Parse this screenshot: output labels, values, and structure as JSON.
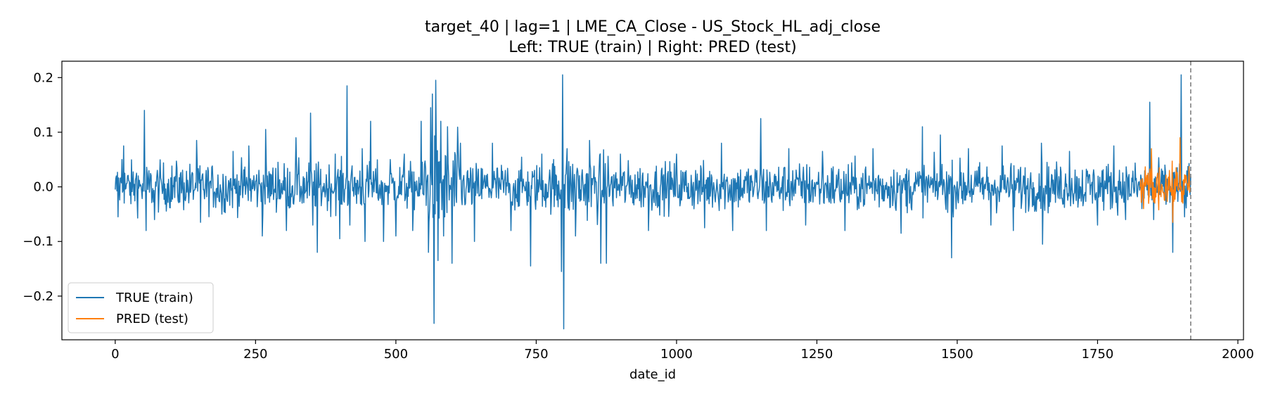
{
  "chart_data": {
    "type": "line",
    "title": "target_40 | lag=1 | LME_CA_Close - US_Stock_HL_adj_close",
    "subtitle": "Left: TRUE (train) | Right: PRED (test)",
    "xlabel": "date_id",
    "ylabel": "",
    "xlim": [
      -95,
      2010
    ],
    "ylim": [
      -0.28,
      0.23
    ],
    "xticks": [
      0,
      250,
      500,
      750,
      1000,
      1250,
      1500,
      1750,
      2000
    ],
    "xtick_labels": [
      "0",
      "250",
      "500",
      "750",
      "1000",
      "1250",
      "1500",
      "1750",
      "2000"
    ],
    "yticks": [
      0.2,
      0.1,
      0.0,
      -0.1,
      -0.2
    ],
    "ytick_labels": [
      "0.2",
      "0.1",
      "0.0",
      "−0.1",
      "−0.2"
    ],
    "grid": false,
    "legend_position": "lower-left",
    "split_marker": {
      "x": 1916,
      "style": "dashed",
      "color": "#7f7f7f"
    },
    "series": [
      {
        "name": "TRUE (train)",
        "color": "#1f77b4",
        "x_range": [
          0,
          1916
        ],
        "spikes": [
          [
            0,
            -0.005
          ],
          [
            2,
            0.02
          ],
          [
            5,
            -0.055
          ],
          [
            12,
            0.05
          ],
          [
            15,
            0.075
          ],
          [
            38,
            0.025
          ],
          [
            52,
            0.14
          ],
          [
            55,
            -0.08
          ],
          [
            70,
            -0.06
          ],
          [
            110,
            0.035
          ],
          [
            145,
            0.085
          ],
          [
            152,
            -0.065
          ],
          [
            190,
            -0.05
          ],
          [
            210,
            0.065
          ],
          [
            238,
            0.075
          ],
          [
            262,
            -0.09
          ],
          [
            268,
            0.105
          ],
          [
            290,
            0.045
          ],
          [
            305,
            -0.08
          ],
          [
            322,
            0.09
          ],
          [
            348,
            0.135
          ],
          [
            352,
            -0.07
          ],
          [
            360,
            -0.12
          ],
          [
            392,
            0.06
          ],
          [
            400,
            -0.095
          ],
          [
            413,
            0.185
          ],
          [
            418,
            -0.07
          ],
          [
            440,
            0.07
          ],
          [
            445,
            -0.1
          ],
          [
            455,
            0.12
          ],
          [
            478,
            -0.1
          ],
          [
            490,
            0.05
          ],
          [
            500,
            -0.09
          ],
          [
            515,
            0.06
          ],
          [
            530,
            -0.08
          ],
          [
            545,
            0.12
          ],
          [
            558,
            -0.12
          ],
          [
            562,
            0.145
          ],
          [
            565,
            0.17
          ],
          [
            568,
            -0.25
          ],
          [
            571,
            0.195
          ],
          [
            575,
            -0.135
          ],
          [
            580,
            0.12
          ],
          [
            585,
            -0.09
          ],
          [
            592,
            0.11
          ],
          [
            600,
            -0.14
          ],
          [
            615,
            0.08
          ],
          [
            640,
            -0.1
          ],
          [
            672,
            0.08
          ],
          [
            705,
            -0.08
          ],
          [
            740,
            -0.145
          ],
          [
            760,
            0.06
          ],
          [
            795,
            -0.155
          ],
          [
            797,
            0.205
          ],
          [
            799,
            -0.26
          ],
          [
            805,
            0.07
          ],
          [
            820,
            -0.09
          ],
          [
            845,
            0.085
          ],
          [
            865,
            -0.14
          ],
          [
            875,
            -0.14
          ],
          [
            900,
            0.06
          ],
          [
            950,
            -0.08
          ],
          [
            1000,
            0.06
          ],
          [
            1050,
            -0.075
          ],
          [
            1080,
            0.08
          ],
          [
            1100,
            -0.08
          ],
          [
            1150,
            0.125
          ],
          [
            1160,
            -0.08
          ],
          [
            1200,
            0.07
          ],
          [
            1230,
            -0.07
          ],
          [
            1260,
            0.065
          ],
          [
            1300,
            -0.08
          ],
          [
            1350,
            0.07
          ],
          [
            1400,
            -0.085
          ],
          [
            1438,
            0.11
          ],
          [
            1470,
            0.095
          ],
          [
            1490,
            -0.13
          ],
          [
            1520,
            0.07
          ],
          [
            1560,
            -0.07
          ],
          [
            1580,
            0.075
          ],
          [
            1600,
            -0.08
          ],
          [
            1650,
            0.08
          ],
          [
            1652,
            -0.105
          ],
          [
            1700,
            0.065
          ],
          [
            1750,
            -0.07
          ],
          [
            1779,
            0.075
          ],
          [
            1800,
            -0.06
          ],
          [
            1829,
            -0.04
          ],
          [
            1843,
            0.155
          ],
          [
            1850,
            -0.06
          ],
          [
            1884,
            -0.12
          ],
          [
            1899,
            0.205
          ],
          [
            1905,
            -0.055
          ],
          [
            1914,
            0.02
          ]
        ]
      },
      {
        "name": "PRED (test)",
        "color": "#ff7f0e",
        "x_range": [
          1826,
          1916
        ],
        "spikes": [
          [
            1826,
            0.0
          ],
          [
            1832,
            -0.04
          ],
          [
            1840,
            0.025
          ],
          [
            1846,
            0.07
          ],
          [
            1852,
            -0.03
          ],
          [
            1860,
            0.035
          ],
          [
            1870,
            -0.025
          ],
          [
            1878,
            0.03
          ],
          [
            1884,
            -0.065
          ],
          [
            1890,
            0.035
          ],
          [
            1897,
            0.09
          ],
          [
            1902,
            -0.03
          ],
          [
            1908,
            0.02
          ],
          [
            1914,
            -0.01
          ]
        ]
      }
    ]
  }
}
